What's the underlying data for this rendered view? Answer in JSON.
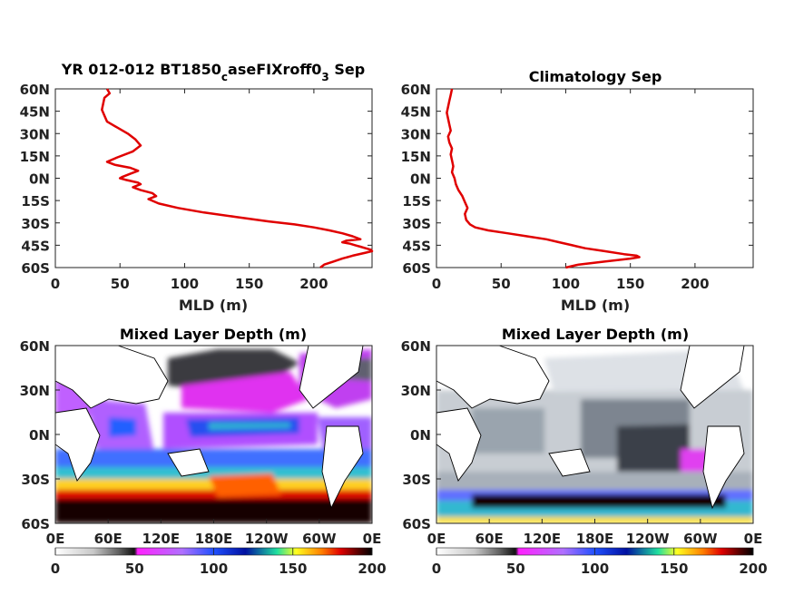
{
  "chart_data": [
    {
      "type": "line",
      "title_main": "YR 012-012 BT1850",
      "title_sub1": "c",
      "title_mid": "aseFIXroff0",
      "title_sub2": "3",
      "title_tail": " Sep",
      "xlabel": "MLD (m)",
      "xlim": [
        0,
        245
      ],
      "ylim": [
        -60,
        60
      ],
      "xticks": [
        "0",
        "50",
        "100",
        "150",
        "200"
      ],
      "yticks": [
        "60N",
        "45N",
        "30N",
        "15N",
        "0N",
        "15S",
        "30S",
        "45S",
        "60S"
      ],
      "line_color": "#e00000",
      "series": [
        {
          "lat": [
            60,
            57,
            54,
            50,
            46,
            42,
            38,
            34,
            30,
            26,
            22,
            18,
            14,
            11,
            9,
            7,
            5,
            3,
            1,
            0,
            -1,
            -3,
            -4,
            -6,
            -8,
            -10,
            -12,
            -14,
            -17,
            -20,
            -23,
            -26,
            -29,
            -31,
            -33,
            -35,
            -37,
            -39,
            -41,
            -42,
            -43,
            -44,
            -45,
            -46,
            -47,
            -48,
            -49,
            -50,
            -52,
            -54,
            -56,
            -58,
            -60
          ],
          "mld": [
            40,
            42,
            38,
            37,
            36,
            38,
            40,
            48,
            56,
            62,
            66,
            60,
            48,
            40,
            46,
            58,
            64,
            58,
            52,
            50,
            54,
            64,
            66,
            60,
            66,
            75,
            78,
            72,
            80,
            95,
            115,
            140,
            165,
            185,
            200,
            212,
            222,
            230,
            236,
            225,
            222,
            228,
            232,
            236,
            240,
            244,
            245,
            240,
            230,
            222,
            215,
            208,
            205
          ]
        }
      ]
    },
    {
      "type": "line",
      "title": "Climatology Sep",
      "xlabel": "MLD (m)",
      "xlim": [
        0,
        245
      ],
      "ylim": [
        -60,
        60
      ],
      "xticks": [
        "0",
        "50",
        "100",
        "150",
        "200"
      ],
      "yticks": [
        "60N",
        "45N",
        "30N",
        "15N",
        "0N",
        "15S",
        "30S",
        "45S",
        "60S"
      ],
      "line_color": "#e00000",
      "series": [
        {
          "lat": [
            60,
            56,
            52,
            48,
            44,
            40,
            36,
            32,
            28,
            24,
            20,
            16,
            12,
            8,
            4,
            0,
            -4,
            -8,
            -12,
            -16,
            -20,
            -24,
            -28,
            -31,
            -33,
            -35,
            -37,
            -39,
            -41,
            -43,
            -45,
            -47,
            -49,
            -51,
            -52,
            -53,
            -54,
            -56,
            -58,
            -60
          ],
          "mld": [
            12,
            11,
            10,
            9,
            8,
            9,
            10,
            11,
            9,
            10,
            12,
            11,
            12,
            13,
            12,
            14,
            15,
            17,
            20,
            22,
            24,
            22,
            23,
            26,
            30,
            40,
            55,
            70,
            85,
            95,
            105,
            115,
            130,
            145,
            155,
            157,
            150,
            130,
            110,
            100
          ]
        }
      ]
    },
    {
      "type": "heatmap",
      "title": "Mixed Layer Depth (m)",
      "xticks": [
        "0E",
        "60E",
        "120E",
        "180E",
        "120W",
        "60W",
        "0E"
      ],
      "yticks": [
        "60N",
        "30N",
        "0N",
        "30S",
        "60S"
      ],
      "colorbar_ticks": [
        "0",
        "50",
        "100",
        "150",
        "200"
      ],
      "colorbar_range": [
        0,
        200
      ],
      "colormap": [
        "#ffffff",
        "#c8c8c8",
        "#555555",
        "#202020",
        "#ff20ff",
        "#b060ff",
        "#2060ff",
        "#0020a0",
        "#20e0a0",
        "#ffff20",
        "#ff8000",
        "#e00000",
        "#600000",
        "#000000"
      ]
    },
    {
      "type": "heatmap",
      "title": "Mixed Layer Depth (m)",
      "xticks": [
        "0E",
        "60E",
        "120E",
        "180E",
        "120W",
        "60W",
        "0E"
      ],
      "yticks": [
        "60N",
        "30N",
        "0N",
        "30S",
        "60S"
      ],
      "colorbar_ticks": [
        "0",
        "50",
        "100",
        "150",
        "200"
      ],
      "colorbar_range": [
        0,
        200
      ],
      "colormap": [
        "#ffffff",
        "#c8c8c8",
        "#555555",
        "#202020",
        "#ff20ff",
        "#b060ff",
        "#2060ff",
        "#0020a0",
        "#20e0a0",
        "#ffff20",
        "#ff8000",
        "#e00000",
        "#600000",
        "#000000"
      ]
    }
  ]
}
